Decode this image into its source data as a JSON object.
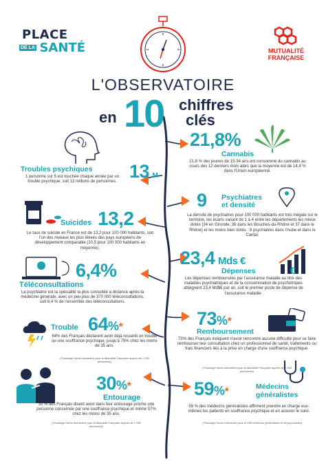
{
  "header": {
    "brand_line1": "PLACE",
    "brand_line2a": "DE LA",
    "brand_line2b": "SANTÉ",
    "partner_line1": "MUTUALITÉ",
    "partner_line2": "FRANÇAISE",
    "title": "L'OBSERVATOIRE",
    "subtitle_pre": "en",
    "subtitle_num": "10",
    "subtitle_post1": "chiffres",
    "subtitle_post2": "clés"
  },
  "facts": {
    "cannabis": {
      "value": "21,8",
      "unit": "%",
      "label": "Cannabis",
      "text": "21,8 % des jeunes de 15-34 ans ont consommé du cannabis au cours des 12 derniers mois alors que la moyenne est de 14,4 % dans l'Union européenne."
    },
    "troubles": {
      "value": "13",
      "unit": "M",
      "label": "Troubles psychiques",
      "text": "1 personne sur 5 est touchée chaque année par un trouble psychique, soit 13 millions de personnes."
    },
    "psychiatres": {
      "value": "9",
      "label1": "Psychiatres",
      "label2": "et densité",
      "text": "La densité de psychiatres pour 100 000 habitants est très inégale sur le territoire, les écarts variant de 1 à 4 entre les départements les mieux dotés (34 en Gironde, 36 dans les Bouches-du-Rhône et 37 dans le Rhône) et les moins bien dotés : 9 psychiatres dans l'Aube et dans le Cantal."
    },
    "suicides": {
      "value": "13,2",
      "label": "Suicides",
      "text": "Le taux de suicide en France est de 13,2 pour 100 000 habitants, soit l'un des niveaux les plus élevés des pays européens de développement comparable (10,5 pour 100 000 habitants en moyenne)."
    },
    "depenses": {
      "value": "23,4",
      "unit": "Mds €",
      "label": "Dépenses",
      "text": "Les dépenses remboursées par l'assurance maladie au titre des maladies psychiatriques et de la consommation de psychotropes atteignent 23,4 Md$€ par an, soit le premier poste de dépense de l'assurance maladie."
    },
    "teleconsult": {
      "value": "6,4",
      "unit": "%",
      "label": "Téléconsultations",
      "text": "La psychiatrie est la spécialité la plus consultée à distance après la médecine générale, avec un peu plus de 370 000 téléconsultations, soit 6,4 % de l'ensemble des téléconsultations."
    },
    "remboursement": {
      "value": "73",
      "unit": "%",
      "star": "*",
      "label": "Remboursement",
      "text": "73% des Français indiquent n'avoir rencontré aucune difficulté pour se faire rembourser leur consultation chez un professionnel de santé, traitements ou frais financiers liés à la prise en charge d'une souffrance psychique.",
      "note": "(*Sondage Harris Interactive pour la Mutualité Française auprès de 1 050 personnes)"
    },
    "trouble": {
      "value": "64",
      "unit": "%",
      "star": "*",
      "label": "Trouble",
      "text": "64% des Français déclarent avoir déjà ressenti un trouble ou une souffrance psychique, jusqu'à 75% chez les moins de 35 ans.",
      "note": "(*Sondage Harris Interactive pour la Mutualité Française auprès de 1 050 personnes)"
    },
    "entourage": {
      "value": "30",
      "unit": "%",
      "star": "*",
      "label": "Entourage",
      "text": "30 % des Français disent avoir dans leur entourage proche une personne concernée par une souffrance psychique et même 57% chez les moins de 35 ans.",
      "note": "(*Sondage Harris Interactive pour la Mutualité Française auprès de 1 050 personnes)"
    },
    "medecins": {
      "value": "59",
      "unit": "%",
      "star": "*",
      "label1": "Médecins",
      "label2": "généralistes",
      "text": "59 % des médecins généralistes affirment prendre en charge eux-mêmes les patients en souffrance psychique et en assurer le suivi.",
      "note": "(*Sondage Harris Interactive pour le 295 médecins généralistes et 40 psychiatres)"
    }
  },
  "colors": {
    "teal": "#1aa3b5",
    "navy": "#1e2a4a",
    "orange": "#f26a21",
    "red": "#e2231a"
  }
}
